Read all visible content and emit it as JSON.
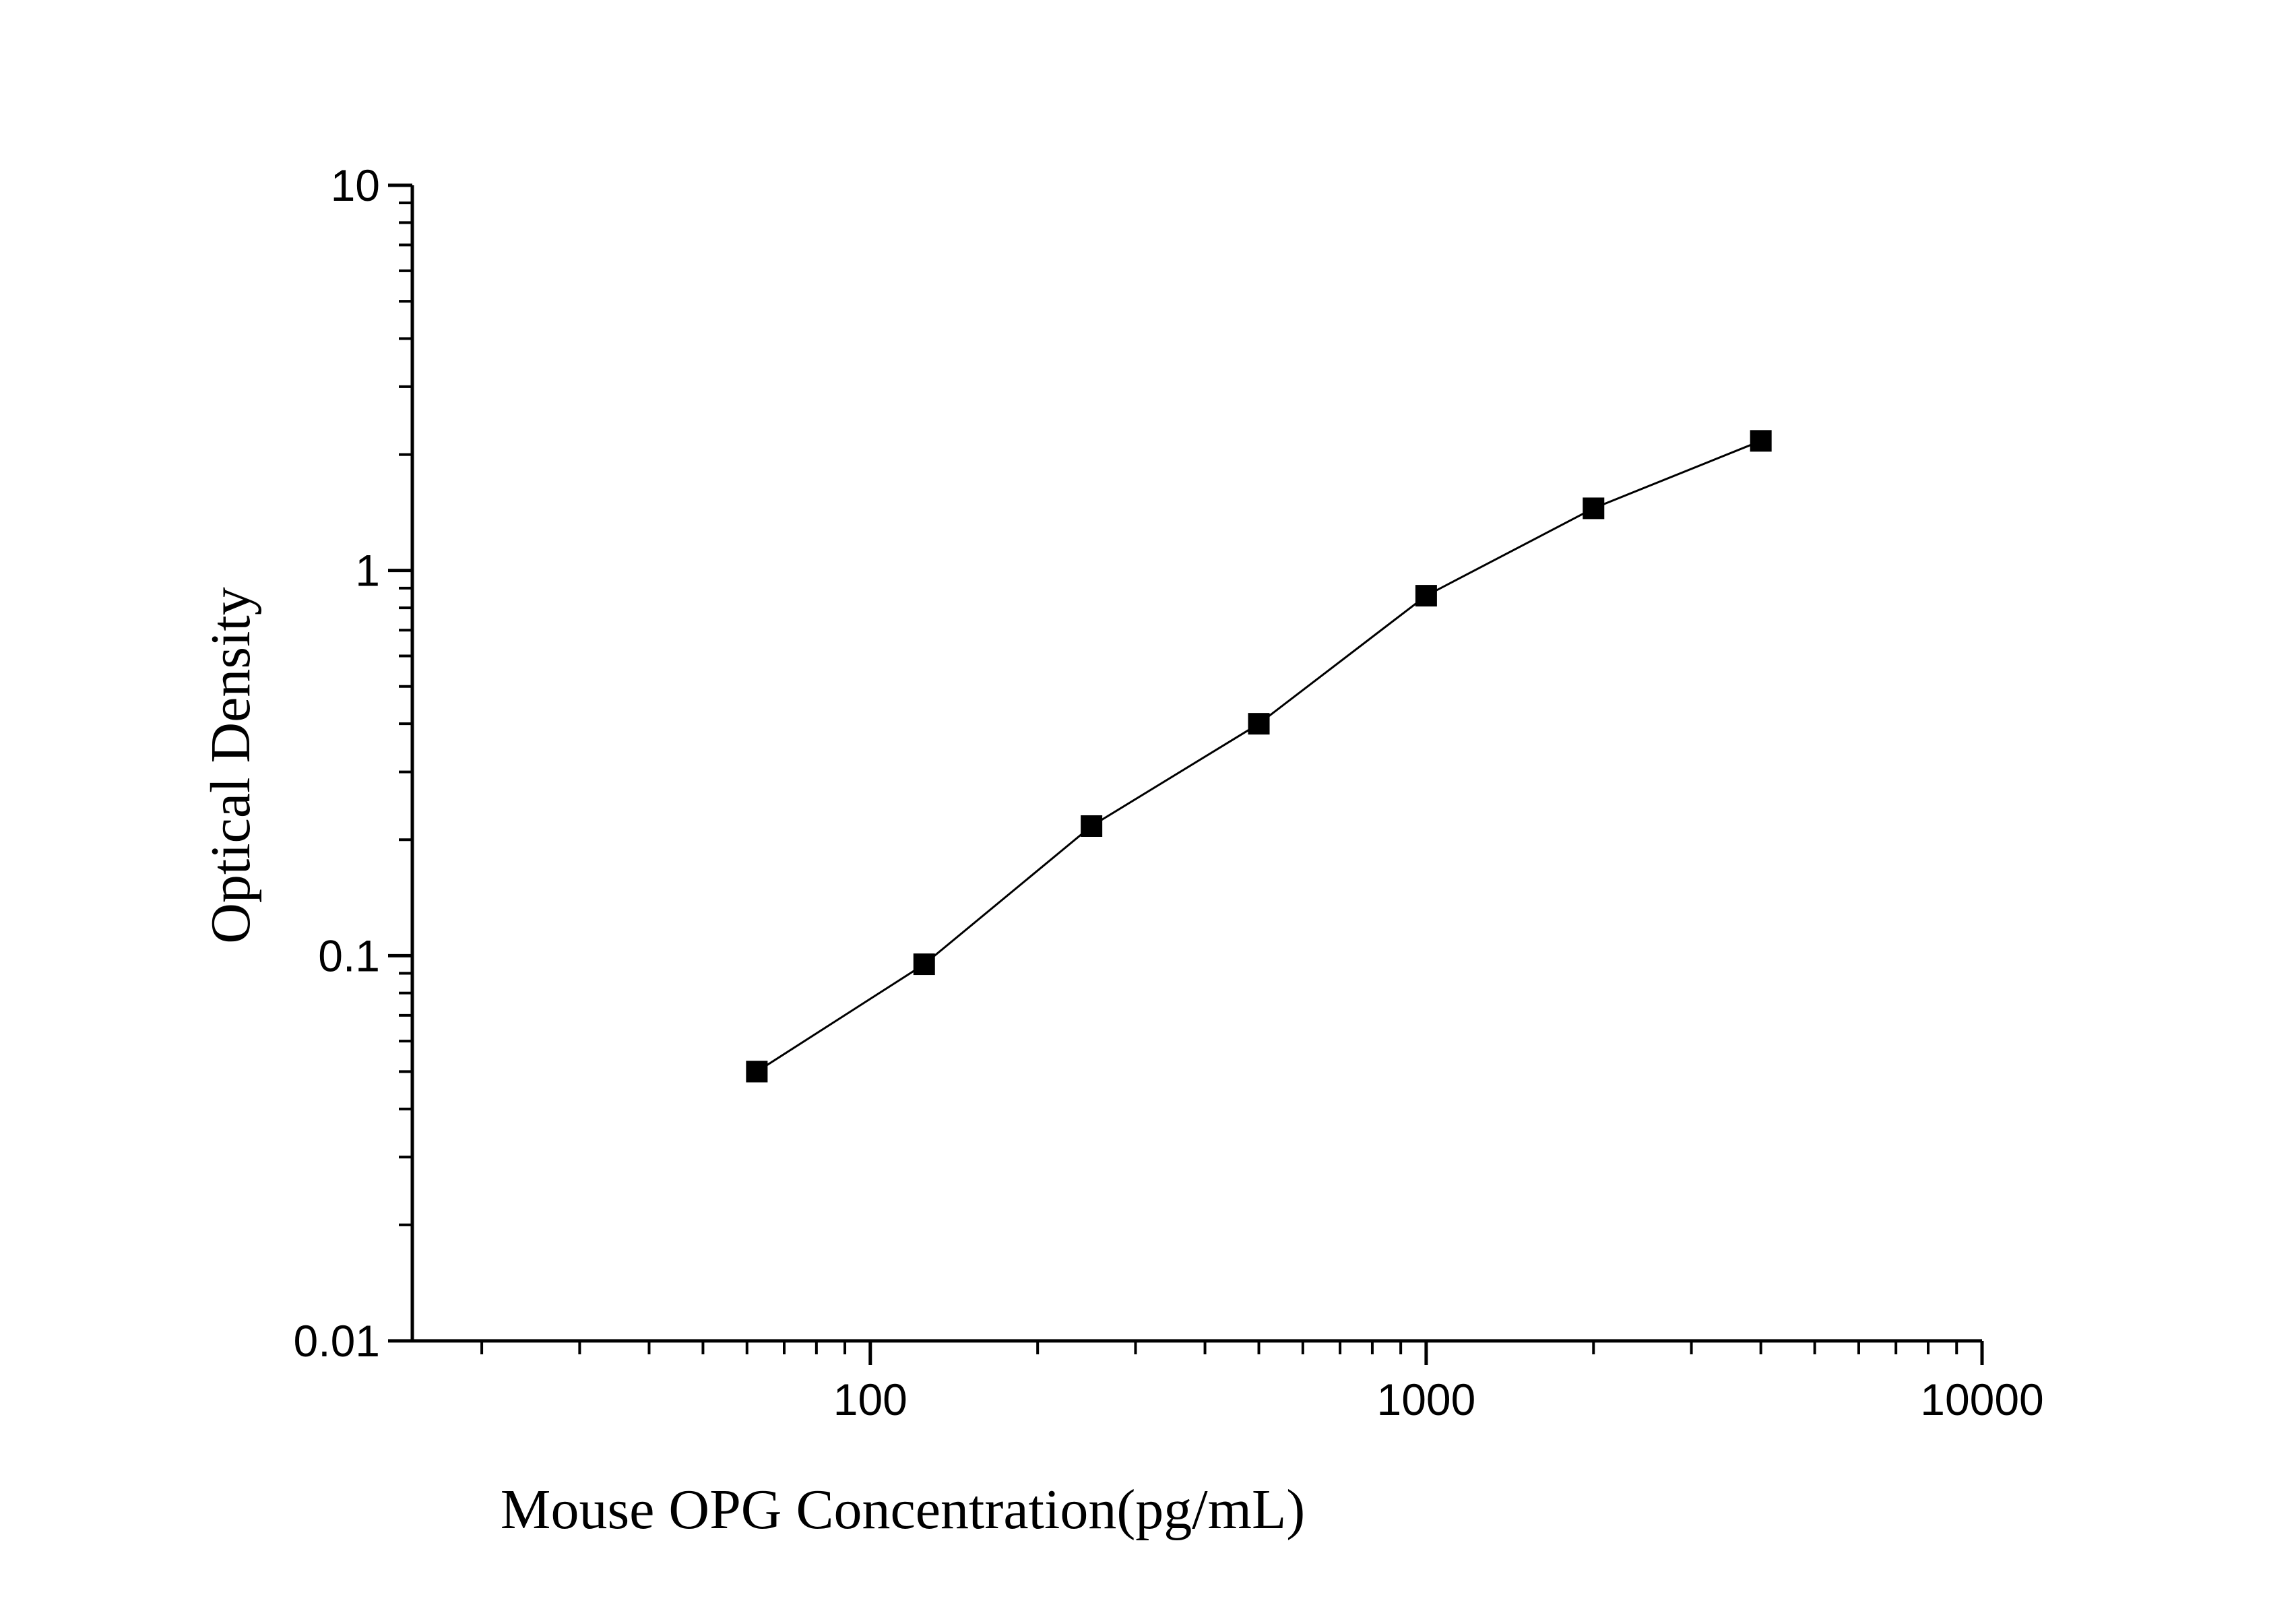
{
  "chart_data": {
    "type": "line",
    "xlabel": "Mouse OPG Concentration(pg/mL)",
    "ylabel": "Optical Density",
    "x_scale": "log",
    "y_scale": "log",
    "xlim": [
      15,
      10000
    ],
    "ylim": [
      0.01,
      10
    ],
    "x_ticks": [
      100,
      1000,
      10000
    ],
    "x_tick_labels": [
      "100",
      "1000",
      "10000"
    ],
    "y_ticks": [
      0.01,
      0.1,
      1,
      10
    ],
    "y_tick_labels": [
      "0.01",
      "0.1",
      "1",
      "10"
    ],
    "grid": false,
    "series": [
      {
        "marker": "square",
        "color": "#000000",
        "x": [
          62.5,
          125,
          250,
          500,
          1000,
          2000,
          4000
        ],
        "y": [
          0.05,
          0.095,
          0.217,
          0.4,
          0.86,
          1.45,
          2.17
        ]
      }
    ]
  }
}
